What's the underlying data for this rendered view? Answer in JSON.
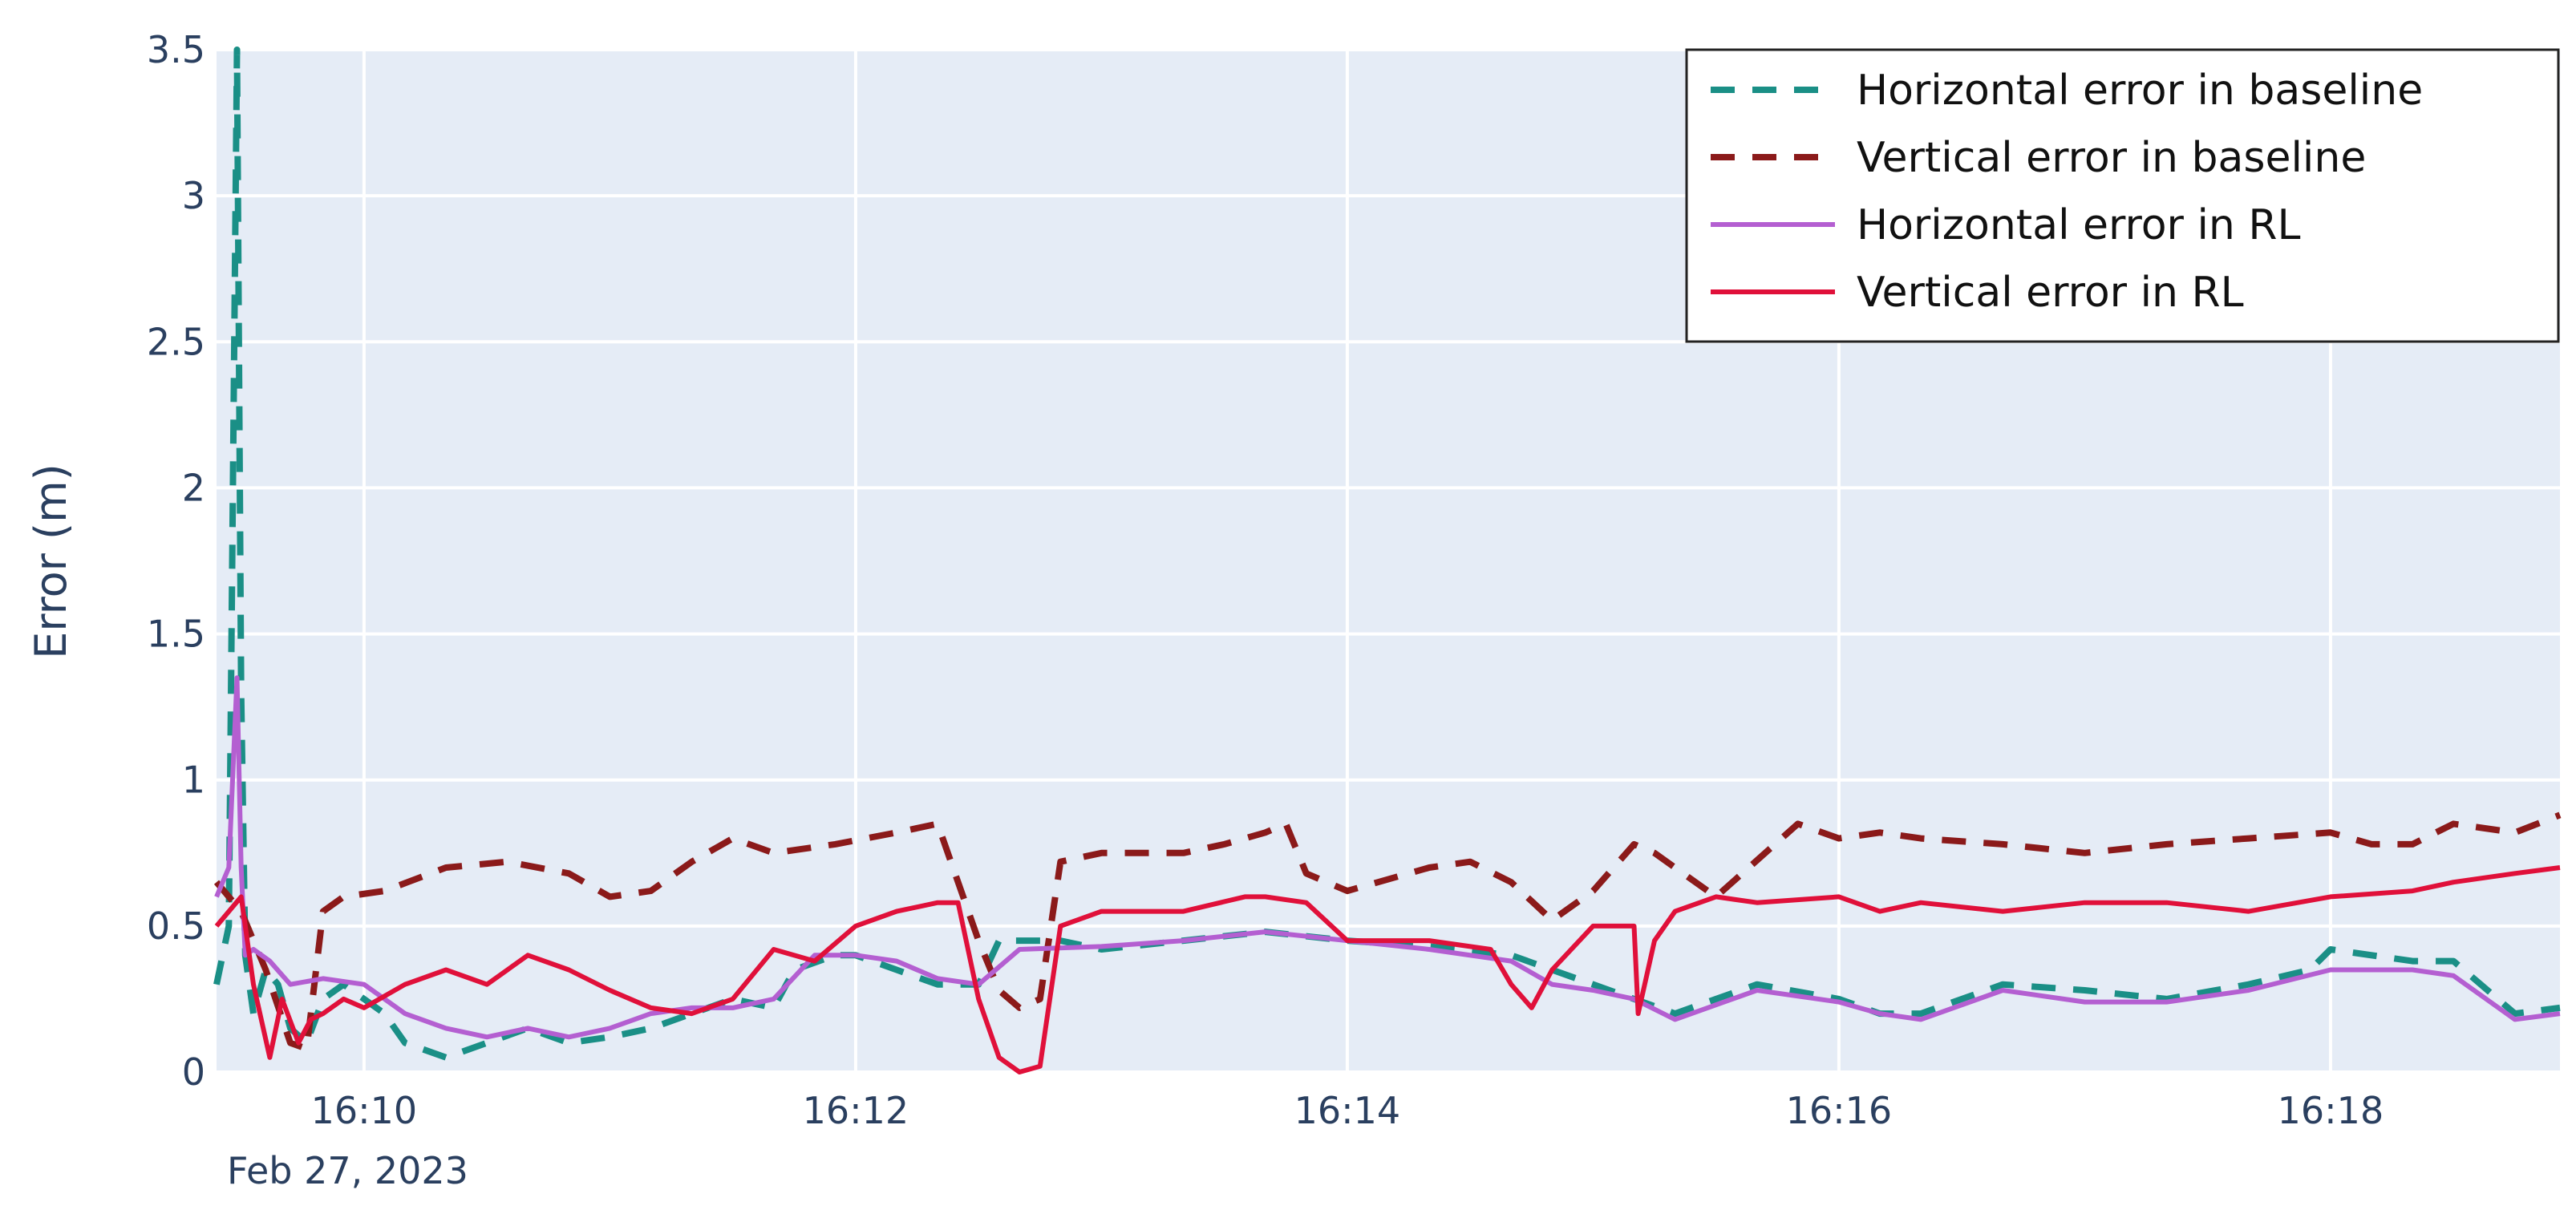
{
  "chart_data": {
    "type": "line",
    "title": "",
    "xlabel": "",
    "ylabel": "Error (m)",
    "x_axis": {
      "type": "time",
      "range": [
        "2023-02-27 16:09:24",
        "2023-02-27 16:18:56"
      ],
      "ticks": [
        "16:10",
        "16:12",
        "16:14",
        "16:16",
        "16:18"
      ],
      "date_annotation": "Feb 27, 2023"
    },
    "ylim": [
      0,
      3.5
    ],
    "y_ticks": [
      "0",
      "0.5",
      "1",
      "1.5",
      "2",
      "2.5",
      "3",
      "3.5"
    ],
    "grid": true,
    "background": "#e5ecf6",
    "legend_position": "top-right",
    "series": [
      {
        "name": "Horizontal error in baseline",
        "color": "#1a8f86",
        "dash": "dash",
        "x": [
          "16:09:24",
          "16:09:27",
          "16:09:29",
          "16:09:30",
          "16:09:31",
          "16:09:33",
          "16:09:36",
          "16:09:39",
          "16:09:42",
          "16:09:46",
          "16:09:50",
          "16:09:55",
          "16:10:00",
          "16:10:05",
          "16:10:10",
          "16:10:20",
          "16:10:30",
          "16:10:40",
          "16:10:50",
          "16:11:00",
          "16:11:10",
          "16:11:20",
          "16:11:30",
          "16:11:40",
          "16:11:45",
          "16:11:55",
          "16:12:00",
          "16:12:10",
          "16:12:20",
          "16:12:30",
          "16:12:35",
          "16:12:50",
          "16:13:00",
          "16:13:20",
          "16:13:40",
          "16:14:00",
          "16:14:20",
          "16:14:40",
          "16:14:50",
          "16:15:00",
          "16:15:10",
          "16:15:20",
          "16:15:40",
          "16:16:00",
          "16:16:10",
          "16:16:20",
          "16:16:40",
          "16:17:00",
          "16:17:20",
          "16:17:40",
          "16:17:55",
          "16:18:00",
          "16:18:20",
          "16:18:30",
          "16:18:45",
          "16:18:56"
        ],
        "y": [
          0.3,
          0.5,
          3.5,
          1.3,
          0.4,
          0.2,
          0.35,
          0.3,
          0.15,
          0.1,
          0.25,
          0.3,
          0.25,
          0.2,
          0.1,
          0.05,
          0.1,
          0.15,
          0.1,
          0.12,
          0.15,
          0.2,
          0.25,
          0.22,
          0.35,
          0.4,
          0.4,
          0.35,
          0.3,
          0.3,
          0.45,
          0.45,
          0.42,
          0.45,
          0.48,
          0.45,
          0.43,
          0.4,
          0.35,
          0.3,
          0.25,
          0.2,
          0.3,
          0.25,
          0.2,
          0.2,
          0.3,
          0.28,
          0.25,
          0.3,
          0.35,
          0.42,
          0.38,
          0.38,
          0.2,
          0.22
        ]
      },
      {
        "name": "Vertical error in baseline",
        "color": "#8b1a1a",
        "dash": "dash",
        "x": [
          "16:09:24",
          "16:09:30",
          "16:09:36",
          "16:09:42",
          "16:09:46",
          "16:09:50",
          "16:09:55",
          "16:10:05",
          "16:10:20",
          "16:10:35",
          "16:10:50",
          "16:11:00",
          "16:11:10",
          "16:11:20",
          "16:11:30",
          "16:11:40",
          "16:11:55",
          "16:12:10",
          "16:12:20",
          "16:12:30",
          "16:12:35",
          "16:12:40",
          "16:12:45",
          "16:12:50",
          "16:13:00",
          "16:13:20",
          "16:13:30",
          "16:13:40",
          "16:13:45",
          "16:13:50",
          "16:14:00",
          "16:14:20",
          "16:14:30",
          "16:14:40",
          "16:14:50",
          "16:15:00",
          "16:15:10",
          "16:15:15",
          "16:15:30",
          "16:15:50",
          "16:16:00",
          "16:16:10",
          "16:16:20",
          "16:16:40",
          "16:17:00",
          "16:17:20",
          "16:17:40",
          "16:18:00",
          "16:18:10",
          "16:18:20",
          "16:18:30",
          "16:18:45",
          "16:18:56"
        ],
        "y": [
          0.65,
          0.55,
          0.35,
          0.1,
          0.08,
          0.55,
          0.6,
          0.62,
          0.7,
          0.72,
          0.68,
          0.6,
          0.62,
          0.72,
          0.8,
          0.75,
          0.78,
          0.82,
          0.85,
          0.45,
          0.28,
          0.22,
          0.25,
          0.72,
          0.75,
          0.75,
          0.78,
          0.82,
          0.85,
          0.68,
          0.62,
          0.7,
          0.72,
          0.65,
          0.52,
          0.62,
          0.78,
          0.75,
          0.6,
          0.85,
          0.8,
          0.82,
          0.8,
          0.78,
          0.75,
          0.78,
          0.8,
          0.82,
          0.78,
          0.78,
          0.85,
          0.82,
          0.88
        ]
      },
      {
        "name": "Horizontal error in RL",
        "color": "#b45fd1",
        "dash": "solid",
        "x": [
          "16:09:24",
          "16:09:27",
          "16:09:29",
          "16:09:30",
          "16:09:31",
          "16:09:33",
          "16:09:37",
          "16:09:42",
          "16:09:50",
          "16:10:00",
          "16:10:10",
          "16:10:20",
          "16:10:30",
          "16:10:40",
          "16:10:50",
          "16:11:00",
          "16:11:10",
          "16:11:20",
          "16:11:30",
          "16:11:40",
          "16:11:50",
          "16:12:00",
          "16:12:10",
          "16:12:20",
          "16:12:30",
          "16:12:40",
          "16:13:00",
          "16:13:20",
          "16:13:40",
          "16:14:00",
          "16:14:20",
          "16:14:40",
          "16:14:50",
          "16:15:00",
          "16:15:10",
          "16:15:20",
          "16:15:40",
          "16:16:00",
          "16:16:10",
          "16:16:20",
          "16:16:40",
          "16:17:00",
          "16:17:20",
          "16:17:40",
          "16:18:00",
          "16:18:20",
          "16:18:30",
          "16:18:45",
          "16:18:56"
        ],
        "y": [
          0.6,
          0.7,
          1.35,
          0.7,
          0.4,
          0.42,
          0.38,
          0.3,
          0.32,
          0.3,
          0.2,
          0.15,
          0.12,
          0.15,
          0.12,
          0.15,
          0.2,
          0.22,
          0.22,
          0.25,
          0.4,
          0.4,
          0.38,
          0.32,
          0.3,
          0.42,
          0.43,
          0.45,
          0.48,
          0.45,
          0.42,
          0.38,
          0.3,
          0.28,
          0.25,
          0.18,
          0.28,
          0.24,
          0.2,
          0.18,
          0.28,
          0.24,
          0.24,
          0.28,
          0.35,
          0.35,
          0.33,
          0.18,
          0.2
        ]
      },
      {
        "name": "Vertical error in RL",
        "color": "#e0103a",
        "dash": "solid",
        "x": [
          "16:09:24",
          "16:09:30",
          "16:09:33",
          "16:09:37",
          "16:09:40",
          "16:09:44",
          "16:09:47",
          "16:09:50",
          "16:09:55",
          "16:10:00",
          "16:10:10",
          "16:10:20",
          "16:10:30",
          "16:10:40",
          "16:10:50",
          "16:11:00",
          "16:11:10",
          "16:11:20",
          "16:11:30",
          "16:11:40",
          "16:11:50",
          "16:12:00",
          "16:12:10",
          "16:12:20",
          "16:12:25",
          "16:12:30",
          "16:12:35",
          "16:12:40",
          "16:12:45",
          "16:12:50",
          "16:13:00",
          "16:13:20",
          "16:13:35",
          "16:13:40",
          "16:13:50",
          "16:14:00",
          "16:14:20",
          "16:14:35",
          "16:14:40",
          "16:14:45",
          "16:14:50",
          "16:15:00",
          "16:15:10",
          "16:15:11",
          "16:15:15",
          "16:15:20",
          "16:15:30",
          "16:15:40",
          "16:16:00",
          "16:16:10",
          "16:16:20",
          "16:16:40",
          "16:17:00",
          "16:17:20",
          "16:17:40",
          "16:18:00",
          "16:18:20",
          "16:18:30",
          "16:18:45",
          "16:18:56"
        ],
        "y": [
          0.5,
          0.6,
          0.3,
          0.05,
          0.25,
          0.1,
          0.18,
          0.2,
          0.25,
          0.22,
          0.3,
          0.35,
          0.3,
          0.4,
          0.35,
          0.28,
          0.22,
          0.2,
          0.25,
          0.42,
          0.38,
          0.5,
          0.55,
          0.58,
          0.58,
          0.25,
          0.05,
          0.0,
          0.02,
          0.5,
          0.55,
          0.55,
          0.6,
          0.6,
          0.58,
          0.45,
          0.45,
          0.42,
          0.3,
          0.22,
          0.35,
          0.5,
          0.5,
          0.2,
          0.45,
          0.55,
          0.6,
          0.58,
          0.6,
          0.55,
          0.58,
          0.55,
          0.58,
          0.58,
          0.55,
          0.6,
          0.62,
          0.65,
          0.68,
          0.7
        ]
      }
    ]
  }
}
